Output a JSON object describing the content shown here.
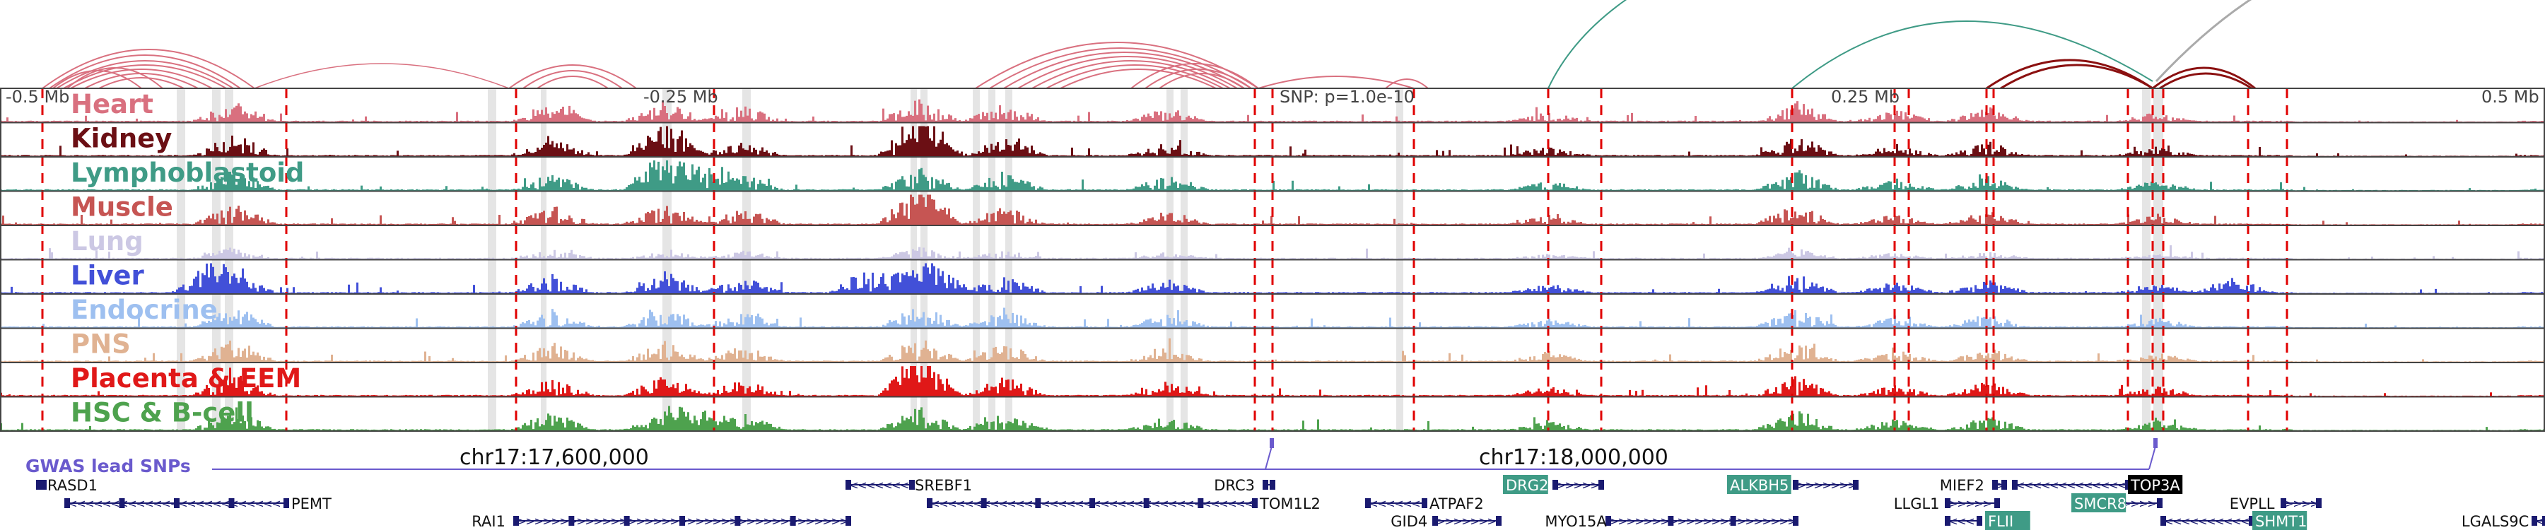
{
  "scale": {
    "ticks": [
      {
        "label": "-0.5 Mb"
      },
      {
        "label": "-0.25 Mb"
      },
      {
        "label": "0.25 Mb"
      },
      {
        "label": "0.5 Mb"
      }
    ],
    "snp_label": "SNP: p=1.0e-10"
  },
  "tracks": [
    {
      "label": "Heart",
      "color": "#d9707f"
    },
    {
      "label": "Kidney",
      "color": "#6b0f14"
    },
    {
      "label": "Lymphoblastoid",
      "color": "#3f9b86"
    },
    {
      "label": "Muscle",
      "color": "#c65553"
    },
    {
      "label": "Lung",
      "color": "#ccc8e4"
    },
    {
      "label": "Liver",
      "color": "#4250d8"
    },
    {
      "label": "Endocrine",
      "color": "#9ec0f0"
    },
    {
      "label": "PNS",
      "color": "#e0b292"
    },
    {
      "label": "Placenta & EEM",
      "color": "#e01818"
    },
    {
      "label": "HSC & B-cell",
      "color": "#4ea24e"
    }
  ],
  "coords": {
    "left": "chr17:17,600,000",
    "right": "chr17:18,000,000"
  },
  "gwas_label": "GWAS lead SNPs",
  "genes": [
    {
      "name": "RASD1",
      "strand": "-",
      "highlight": null
    },
    {
      "name": "PEMT",
      "strand": "-",
      "highlight": null
    },
    {
      "name": "RAI1",
      "strand": "+",
      "highlight": null
    },
    {
      "name": "SREBF1",
      "strand": "-",
      "highlight": null
    },
    {
      "name": "TOM1L2",
      "strand": "-",
      "highlight": null
    },
    {
      "name": "DRC3",
      "strand": "+",
      "highlight": null
    },
    {
      "name": "ATPAF2",
      "strand": "-",
      "highlight": null
    },
    {
      "name": "GID4",
      "strand": "+",
      "highlight": null
    },
    {
      "name": "DRG2",
      "strand": "+",
      "highlight": "teal"
    },
    {
      "name": "MYO15A",
      "strand": "+",
      "highlight": null
    },
    {
      "name": "ALKBH5",
      "strand": "+",
      "highlight": "teal"
    },
    {
      "name": "LLGL1",
      "strand": "+",
      "highlight": null
    },
    {
      "name": "FLII",
      "strand": "-",
      "highlight": "teal"
    },
    {
      "name": "MIEF2",
      "strand": "+",
      "highlight": null
    },
    {
      "name": "TOP3A",
      "strand": "-",
      "highlight": "black"
    },
    {
      "name": "SMCR8",
      "strand": "+",
      "highlight": "teal"
    },
    {
      "name": "SHMT1",
      "strand": "-",
      "highlight": "teal"
    },
    {
      "name": "EVPLL",
      "strand": "+",
      "highlight": null
    },
    {
      "name": "LGALS9C",
      "strand": "-",
      "highlight": null
    }
  ]
}
